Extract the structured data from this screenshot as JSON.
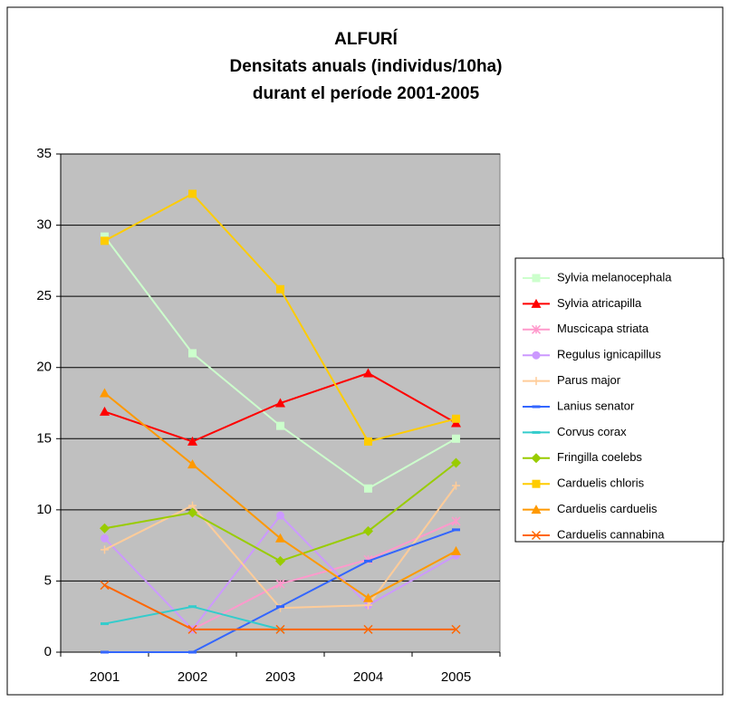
{
  "chart_data": {
    "type": "line",
    "title": [
      "ALFURÍ",
      "Densitats anuals (individus/10ha)",
      "durant el període 2001-2005"
    ],
    "categories": [
      "2001",
      "2002",
      "2003",
      "2004",
      "2005"
    ],
    "ylim": [
      0,
      35
    ],
    "yticks": [
      0,
      5,
      10,
      15,
      20,
      25,
      30,
      35
    ],
    "grid": true,
    "legend": "right",
    "series": [
      {
        "name": "Sylvia melanocephala",
        "color": "#ccffcc",
        "marker": "square",
        "values": [
          29.2,
          21,
          15.9,
          11.5,
          15
        ]
      },
      {
        "name": "Sylvia atricapilla",
        "color": "#ff0000",
        "marker": "triangle",
        "values": [
          16.9,
          14.8,
          17.5,
          19.6,
          16.1
        ]
      },
      {
        "name": "Muscicapa striata",
        "color": "#ff99cc",
        "marker": "star",
        "values": [
          null,
          1.6,
          4.8,
          6.5,
          9.2
        ]
      },
      {
        "name": "Regulus ignicapillus",
        "color": "#cc99ff",
        "marker": "circle",
        "values": [
          8,
          1.6,
          9.6,
          3.3,
          6.8
        ]
      },
      {
        "name": "Parus major",
        "color": "#ffcc99",
        "marker": "plus",
        "values": [
          7.2,
          10.3,
          3.1,
          3.3,
          11.7
        ]
      },
      {
        "name": "Lanius senator",
        "color": "#3366ff",
        "marker": "dash",
        "values": [
          0,
          0,
          3.2,
          6.4,
          8.6
        ]
      },
      {
        "name": "Corvus corax",
        "color": "#33cccc",
        "marker": "dash",
        "values": [
          2,
          3.2,
          1.6,
          null,
          null
        ]
      },
      {
        "name": "Fringilla coelebs",
        "color": "#99cc00",
        "marker": "diamond",
        "values": [
          8.7,
          9.8,
          6.4,
          8.5,
          13.3
        ]
      },
      {
        "name": "Carduelis chloris",
        "color": "#ffcc00",
        "marker": "square",
        "values": [
          28.9,
          32.2,
          25.5,
          14.8,
          16.4
        ]
      },
      {
        "name": "Carduelis carduelis",
        "color": "#ff9900",
        "marker": "triangle",
        "values": [
          18.2,
          13.2,
          8,
          3.8,
          7.1
        ]
      },
      {
        "name": "Carduelis cannabina",
        "color": "#ff6600",
        "marker": "x",
        "values": [
          4.7,
          1.6,
          1.6,
          1.6,
          1.6
        ]
      }
    ]
  }
}
